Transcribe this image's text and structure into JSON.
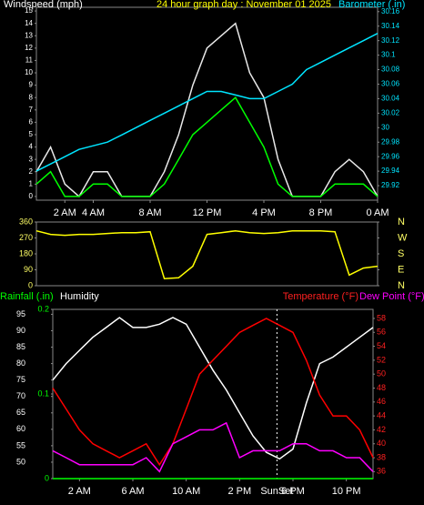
{
  "chart_data": [
    {
      "type": "line",
      "title": "24 hour graph day : November 01 2025",
      "title_color": "#ffff00",
      "ylabel": "Windspeed (mph)",
      "ylabel_color": "#ffffff",
      "y2label": "Barometer (.in)",
      "y2label_color": "#00e5ff",
      "x": [
        0,
        1,
        2,
        3,
        4,
        5,
        6,
        7,
        8,
        9,
        10,
        11,
        12,
        13,
        14,
        15,
        16,
        17,
        18,
        19,
        20,
        21,
        22,
        23,
        24
      ],
      "xlim": [
        0,
        24
      ],
      "xticks": [
        {
          "value": 2,
          "label": "2 AM"
        },
        {
          "value": 4,
          "label": "4 AM"
        },
        {
          "value": 8,
          "label": "8 AM"
        },
        {
          "value": 12,
          "label": "12 PM"
        },
        {
          "value": 16,
          "label": "4 PM"
        },
        {
          "value": 20,
          "label": "8 PM"
        },
        {
          "value": 24,
          "label": "0 AM"
        }
      ],
      "ylim": [
        -0.3,
        15.3
      ],
      "yticks": [
        0,
        1,
        2,
        3,
        4,
        5,
        6,
        7,
        8,
        9,
        10,
        11,
        12,
        13,
        14,
        15
      ],
      "ytick_color": "#ffffff",
      "y2lim": [
        29.9,
        30.166
      ],
      "y2ticks": [
        29.92,
        29.94,
        29.96,
        29.98,
        30,
        30.02,
        30.04,
        30.06,
        30.08,
        30.1,
        30.12,
        30.14,
        30.16
      ],
      "y2tick_color": "#00e5ff",
      "series": [
        {
          "name": "Gust",
          "color": "#e8e8e8",
          "axis": "y",
          "values": [
            2,
            4,
            1,
            0,
            2,
            2,
            0,
            0,
            0,
            2,
            5,
            9,
            12,
            13,
            14,
            10,
            8,
            3,
            0,
            0,
            0,
            2,
            3,
            2,
            0
          ]
        },
        {
          "name": "Average",
          "color": "#00ff00",
          "axis": "y",
          "values": [
            1,
            2,
            0,
            0,
            1,
            1,
            0,
            0,
            0,
            1,
            3,
            5,
            6,
            7,
            8,
            6,
            4,
            1,
            0,
            0,
            0,
            1,
            1,
            1,
            0
          ]
        },
        {
          "name": "Barometer",
          "color": "#00e5ff",
          "axis": "y2",
          "values": [
            29.94,
            29.95,
            29.96,
            29.97,
            29.975,
            29.98,
            29.99,
            30.0,
            30.01,
            30.02,
            30.03,
            30.04,
            30.05,
            30.05,
            30.045,
            30.04,
            30.04,
            30.05,
            30.06,
            30.08,
            30.09,
            30.1,
            30.11,
            30.12,
            30.13
          ]
        }
      ]
    },
    {
      "type": "line",
      "x": [
        0,
        1,
        2,
        3,
        4,
        5,
        6,
        7,
        8,
        9,
        10,
        11,
        12,
        13,
        14,
        15,
        16,
        17,
        18,
        19,
        20,
        21,
        22,
        23,
        24
      ],
      "xlim": [
        0,
        24
      ],
      "ylim": [
        0,
        360
      ],
      "yticks": [
        0,
        90,
        180,
        270,
        360
      ],
      "ytick_color": "#ffff66",
      "y2lim": [
        0,
        360
      ],
      "y2ticks": [
        {
          "value": 360,
          "label": "N"
        },
        {
          "value": 270,
          "label": "W"
        },
        {
          "value": 180,
          "label": "S"
        },
        {
          "value": 90,
          "label": "E"
        },
        {
          "value": 0,
          "label": "N"
        }
      ],
      "y2tick_color": "#ffff66",
      "series": [
        {
          "name": "Direction",
          "color": "#ffff00",
          "axis": "y",
          "values": [
            310,
            290,
            285,
            290,
            290,
            295,
            300,
            300,
            305,
            40,
            45,
            110,
            290,
            300,
            310,
            300,
            295,
            300,
            310,
            310,
            310,
            305,
            60,
            100,
            110
          ]
        }
      ]
    },
    {
      "type": "line",
      "ylabel": "Humidity",
      "ylabel_color": "#ffffff",
      "y3label": "Rainfall (.in)",
      "y3label_color": "#00ff00",
      "y2label": "Temperature (°F)",
      "y2label_color": "#ff2020",
      "y2label_b": "Dew Point (°F)",
      "y2label_b_color": "#ff00ff",
      "x": [
        0,
        1,
        2,
        3,
        4,
        5,
        6,
        7,
        8,
        9,
        10,
        11,
        12,
        13,
        14,
        15,
        16,
        17,
        18,
        19,
        20,
        21,
        22,
        23,
        24
      ],
      "xlim": [
        0,
        24
      ],
      "xticks": [
        {
          "value": 2,
          "label": "2 AM"
        },
        {
          "value": 6,
          "label": "6 AM"
        },
        {
          "value": 10,
          "label": "10 AM"
        },
        {
          "value": 14,
          "label": "2 PM"
        },
        {
          "value": 18,
          "label": "6 PM"
        },
        {
          "value": 22,
          "label": "10 PM"
        }
      ],
      "ylim": [
        45,
        96.5
      ],
      "yticks": [
        50,
        55,
        60,
        65,
        70,
        75,
        80,
        85,
        90,
        95
      ],
      "ytick_color": "#ffffff",
      "y2lim": [
        35,
        59.3
      ],
      "y2ticks": [
        36,
        38,
        40,
        42,
        44,
        46,
        48,
        50,
        52,
        54,
        56,
        58
      ],
      "y2tick_color": "#ff2020",
      "y3lim": [
        0,
        0.2
      ],
      "y3ticks": [
        0,
        0.1,
        0.2
      ],
      "y3tick_color": "#00ff00",
      "annotations": [
        {
          "text": "SunSet",
          "x": 16.8
        }
      ],
      "series": [
        {
          "name": "Humidity",
          "color": "#ffffff",
          "axis": "y",
          "values": [
            75,
            80,
            84,
            88,
            91,
            94,
            91,
            91,
            92,
            94,
            92,
            85,
            78,
            72,
            65,
            58,
            53,
            51,
            54,
            68,
            80,
            82,
            85,
            88,
            91
          ]
        },
        {
          "name": "Temperature",
          "color": "#ff0000",
          "axis": "y2",
          "values": [
            48,
            45,
            42,
            40,
            39,
            38,
            39,
            40,
            37,
            40,
            45,
            50,
            52,
            54,
            56,
            57,
            58,
            57,
            56,
            52,
            47,
            44,
            44,
            42,
            38
          ]
        },
        {
          "name": "Dew Point",
          "color": "#ff00ff",
          "axis": "y2",
          "values": [
            39,
            38,
            37,
            37,
            37,
            37,
            37,
            38,
            36,
            40,
            41,
            42,
            42,
            43,
            38,
            39,
            39,
            39,
            40,
            40,
            39,
            39,
            38,
            38,
            36
          ]
        },
        {
          "name": "Rainfall",
          "color": "#00ff00",
          "axis": "y3",
          "values": [
            0,
            0,
            0,
            0,
            0,
            0,
            0,
            0,
            0,
            0,
            0,
            0,
            0,
            0,
            0,
            0,
            0,
            0,
            0,
            0,
            0,
            0,
            0,
            0,
            0
          ]
        }
      ]
    }
  ]
}
